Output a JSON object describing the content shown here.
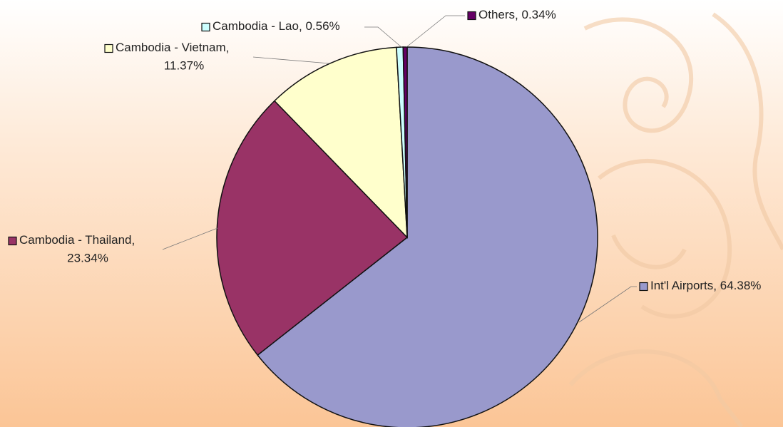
{
  "chart_data": {
    "type": "pie",
    "categories": [
      "Int'l Airports",
      "Cambodia - Thailand",
      "Cambodia - Vietnam",
      "Cambodia - Lao",
      "Others"
    ],
    "values": [
      64.38,
      23.34,
      11.37,
      0.56,
      0.34
    ],
    "value_labels": [
      "64.38%",
      "23.34%",
      "11.37%",
      "0.56%",
      "0.34%"
    ],
    "colors": [
      "#9999cc",
      "#993366",
      "#ffffcc",
      "#ccffff",
      "#660066"
    ]
  }
}
